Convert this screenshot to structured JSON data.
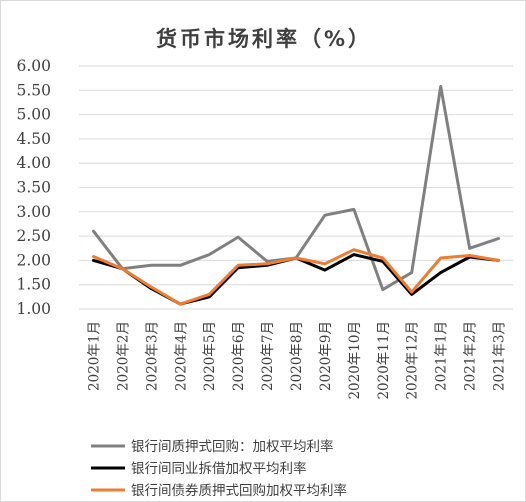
{
  "chart_data": {
    "type": "line",
    "title": "货币市场利率（%）",
    "categories": [
      "2020年1月",
      "2020年2月",
      "2020年3月",
      "2020年4月",
      "2020年5月",
      "2020年6月",
      "2020年7月",
      "2020年8月",
      "2020年9月",
      "2020年10月",
      "2020年11月",
      "2020年12月",
      "2021年1月",
      "2021年2月",
      "2021年3月"
    ],
    "y_ticks": [
      "6.00",
      "5.50",
      "5.00",
      "4.50",
      "4.00",
      "3.50",
      "3.00",
      "2.50",
      "2.00",
      "1.50",
      "1.00"
    ],
    "ylim": [
      1.0,
      6.0
    ],
    "grid": "horizontal",
    "legend_position": "bottom",
    "series": [
      {
        "name": "银行间质押式回购：加权平均利率",
        "color": "#808080",
        "values": [
          2.6,
          1.83,
          1.9,
          1.9,
          2.12,
          2.48,
          1.98,
          2.05,
          2.93,
          3.05,
          1.4,
          1.75,
          5.58,
          2.25,
          2.45
        ]
      },
      {
        "name": "银行间同业拆借加权平均利率",
        "color": "#000000",
        "values": [
          2.0,
          1.83,
          1.42,
          1.1,
          1.25,
          1.85,
          1.9,
          2.05,
          1.8,
          2.12,
          1.98,
          1.3,
          1.75,
          2.07,
          2.0
        ]
      },
      {
        "name": "银行间债券质押式回购加权平均利率",
        "color": "#ed7d31",
        "values": [
          2.08,
          1.83,
          1.45,
          1.1,
          1.3,
          1.9,
          1.93,
          2.05,
          1.93,
          2.22,
          2.05,
          1.35,
          2.05,
          2.1,
          2.0
        ]
      }
    ]
  }
}
